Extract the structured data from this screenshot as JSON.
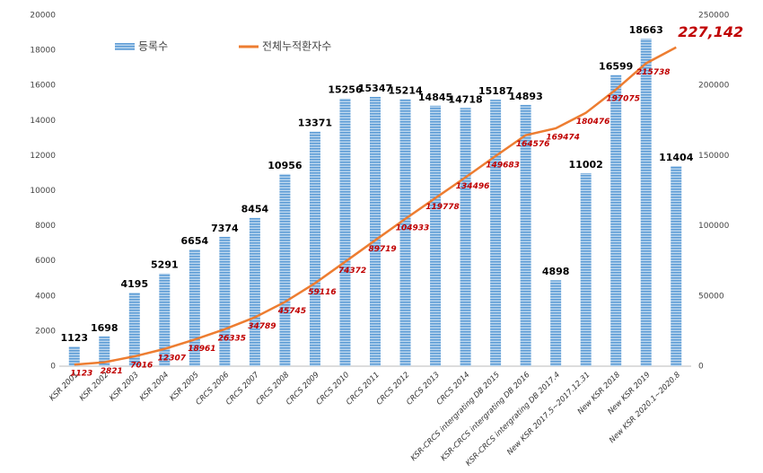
{
  "chart_data": {
    "type": "bar-line",
    "categories": [
      "KSR 2001",
      "KSR 2002",
      "KSR 2003",
      "KSR 2004",
      "KSR 2005",
      "CRCS 2006",
      "CRCS 2007",
      "CRCS 2008",
      "CRCS 2009",
      "CRCS 2010",
      "CRCS 2011",
      "CRCS 2012",
      "CRCS 2013",
      "CRCS 2014",
      "KSR-CRCS intergrating DB 2015",
      "KSR-CRCS intergrating DB 2016",
      "KSR-CRCS intergrating DB 2017.4",
      "New KSR 2017.5~2017.12.31",
      "New KSR 2018",
      "New KSR 2019",
      "New KSR 2020.1~2020.8"
    ],
    "series": [
      {
        "name": "등록수",
        "color": "#5b9bd5",
        "kind": "bar",
        "values": [
          1123,
          1698,
          4195,
          5291,
          6654,
          7374,
          8454,
          10956,
          13371,
          15256,
          15347,
          15214,
          14845,
          14718,
          15187,
          14893,
          4898,
          11002,
          16599,
          18663,
          11404
        ]
      },
      {
        "name": "전체누적환자수",
        "color": "#ed7d31",
        "kind": "line",
        "axis": "y2",
        "values": [
          1123,
          2821,
          7016,
          12307,
          18961,
          26335,
          34789,
          45745,
          59116,
          74372,
          89719,
          104933,
          119778,
          134496,
          149683,
          164576,
          169474,
          180476,
          197075,
          215738,
          227142
        ],
        "value_labels": [
          "1123",
          "2821",
          "7016",
          "12307",
          "18961",
          "26335",
          "34789",
          "45745",
          "59116",
          "74372",
          "89719",
          "104933",
          "119778",
          "134496",
          "149683",
          "164576",
          "169474",
          "180476",
          "197075",
          "215738",
          "227,142"
        ]
      }
    ],
    "ylim": [
      0,
      20000
    ],
    "yticks": [
      0,
      2000,
      4000,
      6000,
      8000,
      10000,
      12000,
      14000,
      16000,
      18000,
      20000
    ],
    "y2lim": [
      0,
      250000
    ],
    "y2ticks": [
      0,
      50000,
      100000,
      150000,
      200000,
      250000
    ],
    "grid": false
  }
}
